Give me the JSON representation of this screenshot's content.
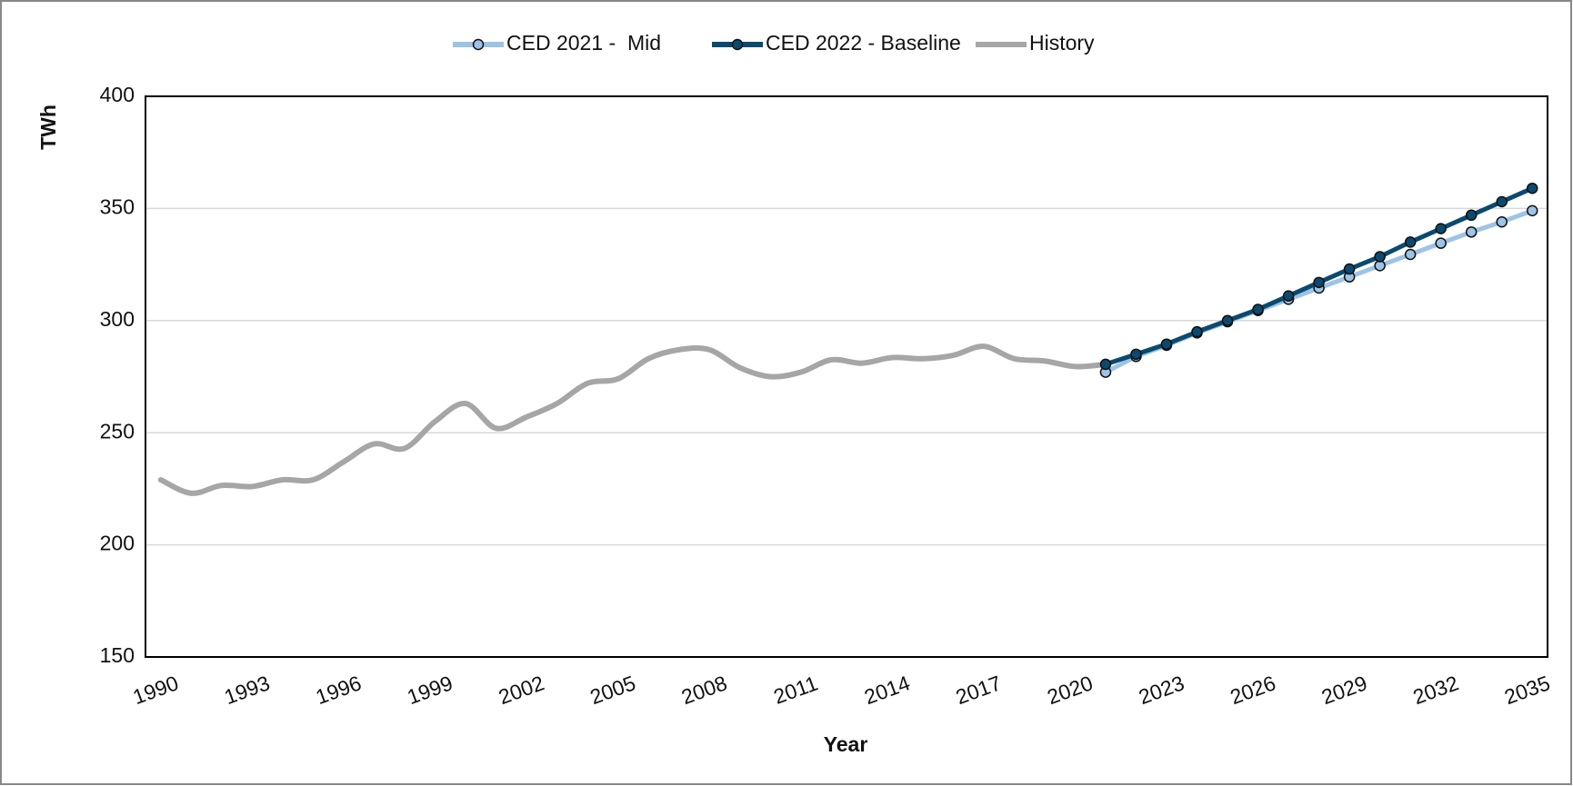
{
  "chart_data": {
    "type": "line",
    "x": [
      1990,
      1991,
      1992,
      1993,
      1994,
      1995,
      1996,
      1997,
      1998,
      1999,
      2000,
      2001,
      2002,
      2003,
      2004,
      2005,
      2006,
      2007,
      2008,
      2009,
      2010,
      2011,
      2012,
      2013,
      2014,
      2015,
      2016,
      2017,
      2018,
      2019,
      2020,
      2021,
      2022,
      2023,
      2024,
      2025,
      2026,
      2027,
      2028,
      2029,
      2030,
      2031,
      2032,
      2033,
      2034,
      2035
    ],
    "xlim": [
      1989.5,
      2035.5
    ],
    "xticks": [
      1990,
      1993,
      1996,
      1999,
      2002,
      2005,
      2008,
      2011,
      2014,
      2017,
      2020,
      2023,
      2026,
      2029,
      2032,
      2035
    ],
    "ylim": [
      150,
      400
    ],
    "yticks": [
      150,
      200,
      250,
      300,
      350,
      400
    ],
    "grid": true,
    "legend": "top",
    "xlabel": "Year",
    "ylabel": "TWh",
    "series": [
      {
        "name": "CED 2021 -  Mid",
        "color": "#9dc3e6",
        "marker": true,
        "marker_fill": "#9dc3e6",
        "values": [
          null,
          null,
          null,
          null,
          null,
          null,
          null,
          null,
          null,
          null,
          null,
          null,
          null,
          null,
          null,
          null,
          null,
          null,
          null,
          null,
          null,
          null,
          null,
          null,
          null,
          null,
          null,
          null,
          null,
          null,
          null,
          277,
          284,
          289,
          294.5,
          299.5,
          304.5,
          309.5,
          314.5,
          319.5,
          324.5,
          329.5,
          334.5,
          339.5,
          344,
          349
        ]
      },
      {
        "name": "CED 2022 - Baseline",
        "color": "#0b4a6e",
        "marker": true,
        "marker_fill": "#0b4a6e",
        "values": [
          null,
          null,
          null,
          null,
          null,
          null,
          null,
          null,
          null,
          null,
          null,
          null,
          null,
          null,
          null,
          null,
          null,
          null,
          null,
          null,
          null,
          null,
          null,
          null,
          null,
          null,
          null,
          null,
          null,
          null,
          null,
          280.5,
          285,
          289.5,
          295,
          300,
          305,
          311,
          317,
          323,
          328.5,
          335,
          341,
          347,
          353,
          359
        ]
      },
      {
        "name": "History",
        "color": "#a6a6a6",
        "marker": false,
        "smooth": true,
        "values": [
          229,
          223,
          226.5,
          226,
          229,
          229,
          237,
          245,
          243,
          255,
          263,
          252,
          257,
          263,
          272,
          274,
          283,
          287,
          287,
          279,
          275,
          277,
          282.5,
          281,
          283.5,
          283,
          284.5,
          288.5,
          283,
          282,
          279.5,
          280.5,
          null,
          null,
          null,
          null,
          null,
          null,
          null,
          null,
          null,
          null,
          null,
          null,
          null,
          null
        ]
      }
    ]
  }
}
